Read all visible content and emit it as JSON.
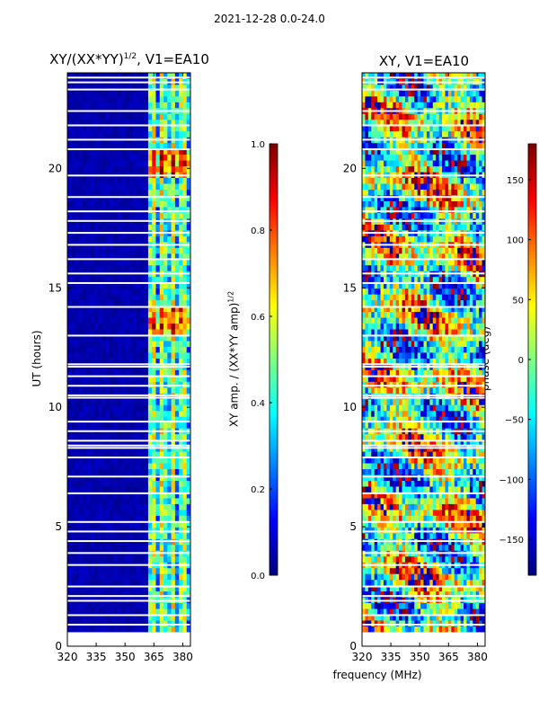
{
  "suptitle": "2021-12-28 0.0-24.0",
  "shared_xlabel": "frequency (MHz)",
  "chart_data": [
    {
      "type": "heatmap",
      "title_main": "XY/(XX*YY)",
      "title_sup": "1/2",
      "title_rest": ", V1=EA10",
      "xlabel": "",
      "ylabel": "UT (hours)",
      "xlim": [
        320,
        384
      ],
      "ylim": [
        0,
        24
      ],
      "xticks": [
        320,
        335,
        350,
        365,
        380
      ],
      "yticks": [
        0,
        5,
        10,
        15,
        20
      ],
      "data_ut_range": [
        0.6,
        24.0
      ],
      "colorbar": {
        "label_main": "XY amp. / (XX*YY amp)",
        "label_sup": "1/2",
        "range": [
          0.0,
          1.0
        ],
        "ticks": [
          "0.0",
          "0.2",
          "0.4",
          "0.6",
          "0.8",
          "1.0"
        ],
        "tick_values": [
          0.0,
          0.2,
          0.4,
          0.6,
          0.8,
          1.0
        ]
      },
      "notes": "amplitude near 0 below ~362 MHz, 0.3-0.9 between 362-384 MHz; horizontal white gaps are flagged data"
    },
    {
      "type": "heatmap",
      "title": "XY, V1=EA10",
      "xlabel": "",
      "ylabel": "",
      "xlim": [
        320,
        384
      ],
      "ylim": [
        0,
        24
      ],
      "xticks": [
        320,
        335,
        350,
        365,
        380
      ],
      "yticks": [
        0,
        5,
        10,
        15,
        20
      ],
      "data_ut_range": [
        0.6,
        24.0
      ],
      "colorbar": {
        "label": "phase (deg)",
        "range": [
          -180,
          180
        ],
        "ticks": [
          "−150",
          "−100",
          "−50",
          "0",
          "50",
          "100",
          "150"
        ],
        "tick_values": [
          -150,
          -100,
          -50,
          0,
          50,
          100,
          150
        ]
      },
      "notes": "XY phase, mixed values across full range"
    }
  ],
  "gaps_hours": [
    0.9,
    1.3,
    1.9,
    2.1,
    2.5,
    3.4,
    3.9,
    4.4,
    4.8,
    5.2,
    6.4,
    7.1,
    7.9,
    8.3,
    8.4,
    8.6,
    9.0,
    9.4,
    10.4,
    10.5,
    10.9,
    11.3,
    11.7,
    11.8,
    13.0,
    14.2,
    15.2,
    15.6,
    16.2,
    16.8,
    17.3,
    17.8,
    18.2,
    18.8,
    19.7,
    20.8,
    21.2,
    21.8,
    22.4,
    23.3,
    23.6,
    23.8
  ]
}
